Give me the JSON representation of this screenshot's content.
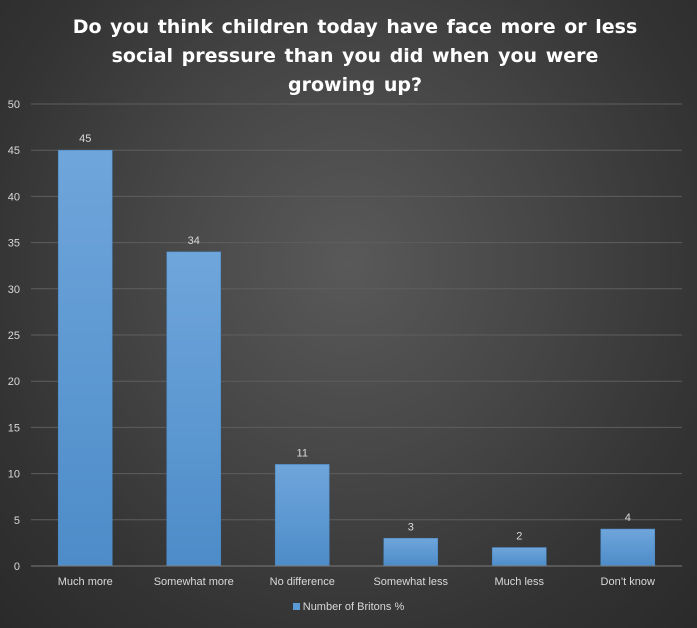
{
  "chart_data": {
    "type": "bar",
    "title": "Do you think children today have face more or less social pressure than you did when you were growing up?",
    "categories": [
      "Much more",
      "Somewhat more",
      "No difference",
      "Somewhat less",
      "Much less",
      "Don’t know"
    ],
    "series": [
      {
        "name": "Number of Britons %",
        "values": [
          45,
          34,
          11,
          3,
          2,
          4
        ]
      }
    ],
    "y_ticks": [
      0,
      5,
      10,
      15,
      20,
      25,
      30,
      35,
      40,
      45,
      50
    ],
    "ylim": [
      0,
      50
    ],
    "grid": true,
    "data_labels": true,
    "legend_position": "bottom",
    "bar_color": "#5b9bd5",
    "text_color": "#d9d9d9",
    "title_color": "#ffffff",
    "background_color": "#404040"
  }
}
